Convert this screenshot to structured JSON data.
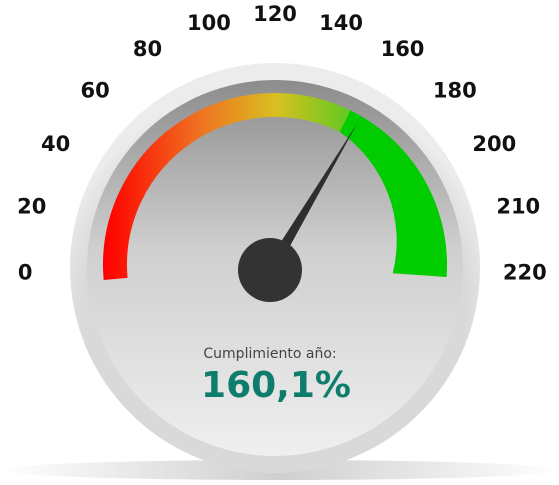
{
  "chart_data": {
    "type": "gauge",
    "label": "Cumplimiento año:",
    "value": 160.1,
    "value_label": "160,1%",
    "ylim": [
      0,
      220
    ],
    "yticks": [
      0,
      20,
      40,
      60,
      80,
      100,
      120,
      140,
      160,
      180,
      200,
      210,
      220
    ]
  }
}
